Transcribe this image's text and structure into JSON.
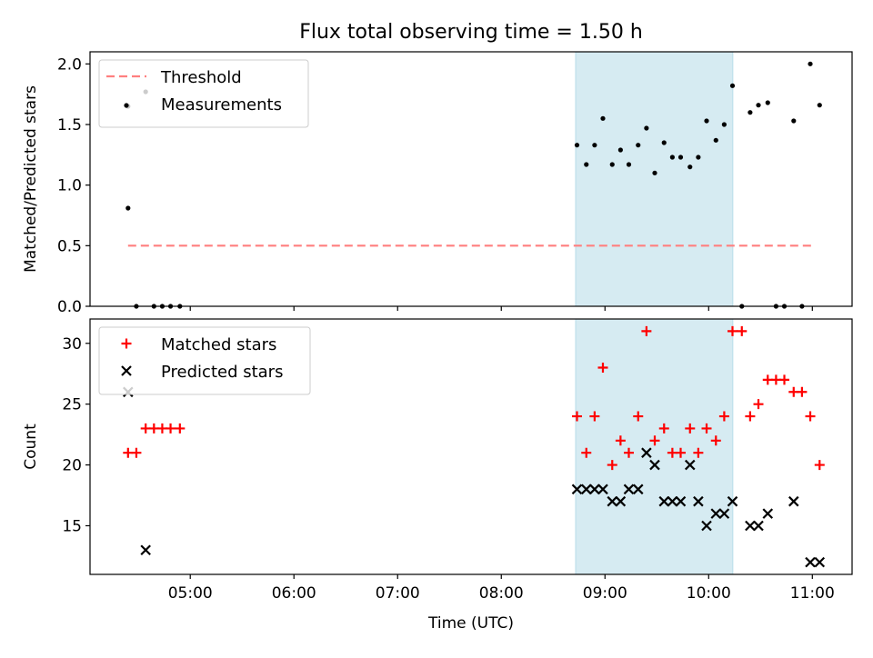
{
  "chart_data": {
    "title": "Flux total observing time = 1.50 h",
    "xlabel": "Time (UTC)",
    "x_ticks": [
      "05:00",
      "06:00",
      "07:00",
      "08:00",
      "09:00",
      "10:00",
      "11:00"
    ],
    "x_tick_hours": [
      5,
      6,
      7,
      8,
      9,
      10,
      11
    ],
    "xlim_hours": [
      4.0333,
      11.3833
    ],
    "highlight_span_hours": [
      8.7167,
      10.2333
    ],
    "highlight_color": "#add8e6",
    "panels": [
      {
        "type": "scatter",
        "ylabel": "Matched/Predicted stars",
        "ylim": [
          0,
          2.1
        ],
        "y_ticks": [
          "0.0",
          "0.5",
          "1.0",
          "1.5",
          "2.0"
        ],
        "y_tick_values": [
          0,
          0.5,
          1.0,
          1.5,
          2.0
        ],
        "legend": "top-left",
        "threshold": {
          "name": "Threshold",
          "value": 0.5,
          "x_range_hours": [
            4.4,
            11.0
          ],
          "color": "#ff7f7f"
        },
        "series": [
          {
            "name": "Measurements",
            "color": "#000000",
            "points": [
              [
                4.4,
                0.81
              ],
              [
                4.48,
                0
              ],
              [
                4.57,
                1.77
              ],
              [
                4.65,
                0
              ],
              [
                4.73,
                0
              ],
              [
                4.81,
                0
              ],
              [
                4.9,
                0
              ],
              [
                4.4,
                1.65
              ],
              [
                8.73,
                1.33
              ],
              [
                8.82,
                1.17
              ],
              [
                8.9,
                1.33
              ],
              [
                8.98,
                1.55
              ],
              [
                9.07,
                1.17
              ],
              [
                9.15,
                1.29
              ],
              [
                9.23,
                1.17
              ],
              [
                9.32,
                1.33
              ],
              [
                9.4,
                1.47
              ],
              [
                9.48,
                1.1
              ],
              [
                9.57,
                1.35
              ],
              [
                9.65,
                1.23
              ],
              [
                9.73,
                1.23
              ],
              [
                9.82,
                1.15
              ],
              [
                9.9,
                1.23
              ],
              [
                9.98,
                1.53
              ],
              [
                10.07,
                1.37
              ],
              [
                10.15,
                1.5
              ],
              [
                10.23,
                1.82
              ],
              [
                10.32,
                0
              ],
              [
                10.4,
                1.6
              ],
              [
                10.48,
                1.66
              ],
              [
                10.57,
                1.68
              ],
              [
                10.65,
                0
              ],
              [
                10.73,
                0
              ],
              [
                10.82,
                1.53
              ],
              [
                10.9,
                0
              ],
              [
                10.98,
                2.0
              ],
              [
                11.07,
                1.66
              ]
            ]
          }
        ]
      },
      {
        "type": "scatter",
        "ylabel": "Count",
        "ylim": [
          11,
          32
        ],
        "y_ticks": [
          "15",
          "20",
          "25",
          "30"
        ],
        "y_tick_values": [
          15,
          20,
          25,
          30
        ],
        "legend": "top-left",
        "series": [
          {
            "name": "Matched stars",
            "marker": "+",
            "color": "#ff0000",
            "points": [
              [
                4.4,
                21
              ],
              [
                4.48,
                21
              ],
              [
                4.57,
                23
              ],
              [
                4.65,
                23
              ],
              [
                4.73,
                23
              ],
              [
                4.81,
                23
              ],
              [
                4.9,
                23
              ],
              [
                8.73,
                24
              ],
              [
                8.82,
                21
              ],
              [
                8.9,
                24
              ],
              [
                8.98,
                28
              ],
              [
                9.07,
                20
              ],
              [
                9.15,
                22
              ],
              [
                9.23,
                21
              ],
              [
                9.32,
                24
              ],
              [
                9.4,
                31
              ],
              [
                9.48,
                22
              ],
              [
                9.57,
                23
              ],
              [
                9.65,
                21
              ],
              [
                9.73,
                21
              ],
              [
                9.82,
                23
              ],
              [
                9.9,
                21
              ],
              [
                9.98,
                23
              ],
              [
                10.07,
                22
              ],
              [
                10.15,
                24
              ],
              [
                10.23,
                31
              ],
              [
                10.32,
                31
              ],
              [
                10.4,
                24
              ],
              [
                10.48,
                25
              ],
              [
                10.57,
                27
              ],
              [
                10.65,
                27
              ],
              [
                10.73,
                27
              ],
              [
                10.82,
                26
              ],
              [
                10.9,
                26
              ],
              [
                10.98,
                24
              ],
              [
                11.07,
                20
              ]
            ]
          },
          {
            "name": "Predicted stars",
            "marker": "x",
            "color": "#000000",
            "points": [
              [
                4.4,
                26
              ],
              [
                4.57,
                13
              ],
              [
                8.73,
                18
              ],
              [
                8.82,
                18
              ],
              [
                8.9,
                18
              ],
              [
                8.98,
                18
              ],
              [
                9.07,
                17
              ],
              [
                9.15,
                17
              ],
              [
                9.23,
                18
              ],
              [
                9.32,
                18
              ],
              [
                9.4,
                21
              ],
              [
                9.48,
                20
              ],
              [
                9.57,
                17
              ],
              [
                9.65,
                17
              ],
              [
                9.73,
                17
              ],
              [
                9.82,
                20
              ],
              [
                9.9,
                17
              ],
              [
                9.98,
                15
              ],
              [
                10.07,
                16
              ],
              [
                10.15,
                16
              ],
              [
                10.23,
                17
              ],
              [
                10.4,
                15
              ],
              [
                10.48,
                15
              ],
              [
                10.57,
                16
              ],
              [
                10.82,
                17
              ],
              [
                10.98,
                12
              ],
              [
                11.07,
                12
              ]
            ]
          }
        ]
      }
    ]
  }
}
